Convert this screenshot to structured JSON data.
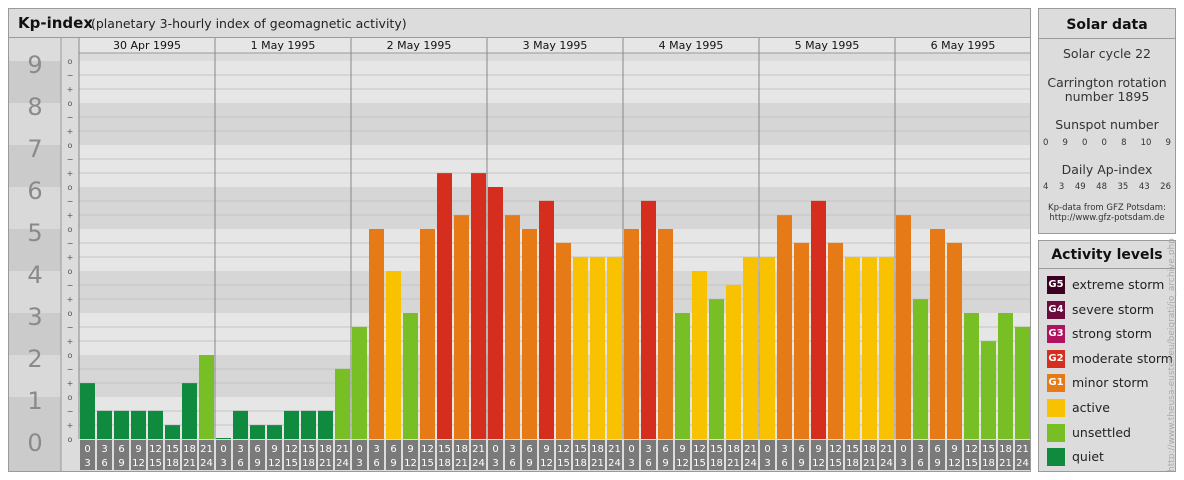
{
  "header": {
    "title": "Kp-index",
    "subtitle": "(planetary 3-hourly index of geomagnetic activity)"
  },
  "chart_data": {
    "type": "bar",
    "title": "Kp-index",
    "ylim": [
      0,
      9
    ],
    "yticks": [
      "0",
      "1",
      "2",
      "3",
      "4",
      "5",
      "6",
      "7",
      "8",
      "9"
    ],
    "ysubticks": [
      "o",
      "+",
      "−"
    ],
    "dates": [
      "30 Apr 1995",
      "1 May 1995",
      "2 May 1995",
      "3 May 1995",
      "4 May 1995",
      "5 May 1995",
      "6 May 1995"
    ],
    "hour_start": [
      "0",
      "3",
      "6",
      "9",
      "12",
      "15",
      "18",
      "21"
    ],
    "hour_end": [
      "3",
      "6",
      "9",
      "12",
      "15",
      "18",
      "21",
      "24"
    ],
    "values": [
      [
        1.33,
        0.67,
        0.67,
        0.67,
        0.67,
        0.33,
        1.33,
        2.0
      ],
      [
        0.0,
        0.67,
        0.33,
        0.33,
        0.67,
        0.67,
        0.67,
        1.67
      ],
      [
        2.67,
        5.0,
        4.0,
        3.0,
        5.0,
        6.33,
        5.33,
        6.33
      ],
      [
        6.0,
        5.33,
        5.0,
        5.67,
        4.67,
        4.33,
        4.33,
        4.33
      ],
      [
        5.0,
        5.67,
        5.0,
        3.0,
        4.0,
        3.33,
        3.67,
        4.33
      ],
      [
        4.33,
        5.33,
        4.67,
        5.67,
        4.67,
        4.33,
        4.33,
        4.33
      ],
      [
        5.33,
        3.33,
        5.0,
        4.67,
        3.0,
        2.33,
        3.0,
        2.67
      ]
    ],
    "level_colors": {
      "quiet": "#0f8a3e",
      "unsettled": "#78be25",
      "active": "#f8c200",
      "G1": "#e67a17",
      "G2": "#d52e1f",
      "G3": "#b0125e",
      "G4": "#6b0b3e",
      "G5": "#3b0022"
    }
  },
  "solar": {
    "title": "Solar data",
    "cycle": "Solar cycle 22",
    "carrington_line1": "Carrington rotation",
    "carrington_line2": "number 1895",
    "sunspot_title": "Sunspot number",
    "sunspot_values": [
      "0",
      "9",
      "0",
      "0",
      "8",
      "10",
      "9"
    ],
    "ap_title": "Daily Ap-index",
    "ap_values": [
      "4",
      "3",
      "49",
      "48",
      "35",
      "43",
      "26"
    ],
    "credit_line1": "Kp-data from GFZ Potsdam:",
    "credit_line2": "http://www.gfz-potsdam.de"
  },
  "activity": {
    "title": "Activity levels",
    "items": [
      {
        "badge": "G5",
        "label": "extreme storm",
        "color": "#3b0022"
      },
      {
        "badge": "G4",
        "label": "severe storm",
        "color": "#6b0b3e"
      },
      {
        "badge": "G3",
        "label": "strong storm",
        "color": "#b0125e"
      },
      {
        "badge": "G2",
        "label": "moderate storm",
        "color": "#d52e1f"
      },
      {
        "badge": "G1",
        "label": "minor storm",
        "color": "#e67a17"
      },
      {
        "badge": "",
        "label": "active",
        "color": "#f8c200"
      },
      {
        "badge": "",
        "label": "unsettled",
        "color": "#78be25"
      },
      {
        "badge": "",
        "label": "quiet",
        "color": "#0f8a3e"
      }
    ]
  },
  "watermark": "http://www.theusa-euster.eu/beigrati/jo_archive.php"
}
